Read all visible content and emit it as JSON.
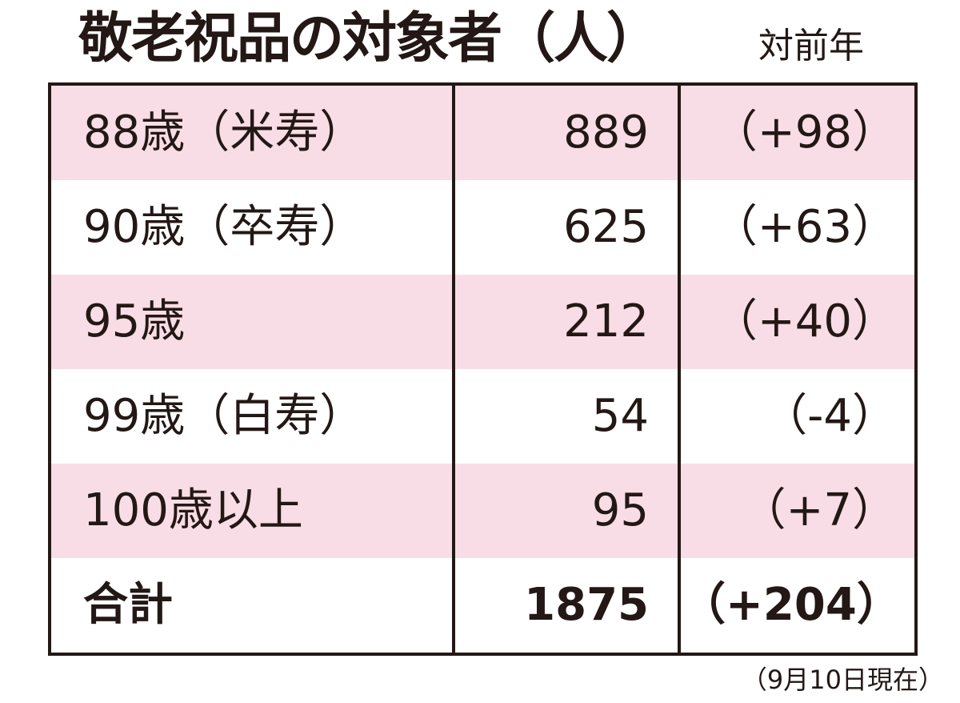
{
  "header": {
    "title": "敬老祝品の対象者（人）",
    "subtitle": "対前年"
  },
  "table": {
    "rows": [
      [
        "88歳（米寿）",
        "889",
        "（+98）"
      ],
      [
        "90歳（卒寿）",
        "625",
        "（+63）"
      ],
      [
        "95歳",
        "212",
        "（+40）"
      ],
      [
        "99歳（白寿）",
        "54",
        "（-4）"
      ],
      [
        "100歳以上",
        "95",
        "（+7）"
      ],
      [
        "合計",
        "1875",
        "（+204）"
      ]
    ]
  },
  "footnote": "（9月10日現在）"
}
